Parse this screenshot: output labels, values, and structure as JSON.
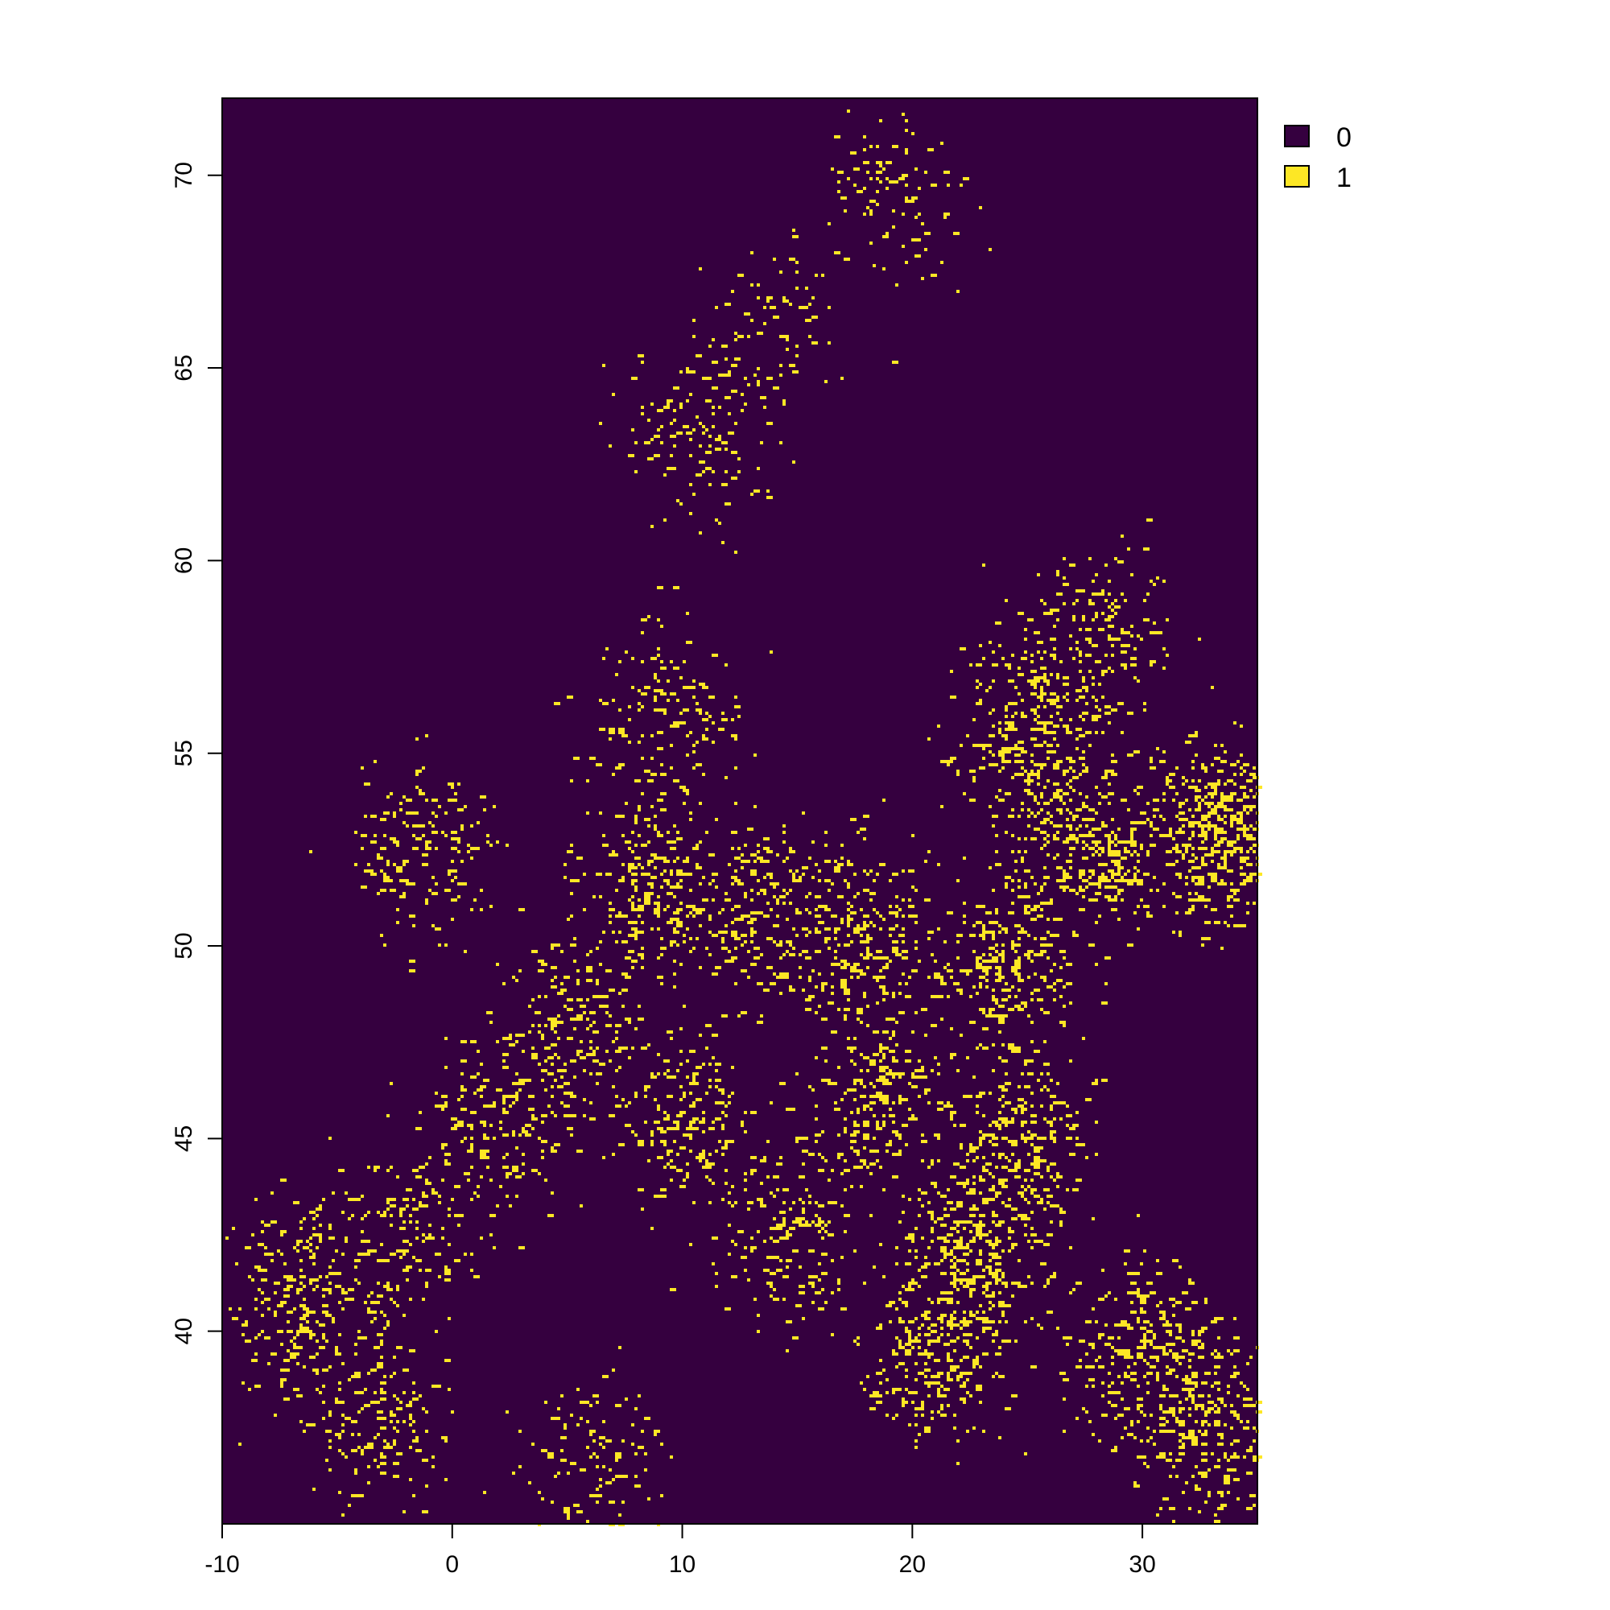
{
  "chart_data": {
    "type": "heatmap",
    "title": "",
    "xlabel": "",
    "ylabel": "",
    "xlim": [
      -10,
      35
    ],
    "ylim": [
      35,
      72
    ],
    "x_ticks": [
      -10,
      0,
      10,
      20,
      30
    ],
    "y_ticks": [
      40,
      45,
      50,
      55,
      60,
      65,
      70
    ],
    "x_tick_labels": [
      "-10",
      "0",
      "10",
      "20",
      "30"
    ],
    "y_tick_labels": [
      "40",
      "45",
      "50",
      "55",
      "60",
      "65",
      "70"
    ],
    "legend": {
      "placement": "right",
      "entries": [
        {
          "label": "0",
          "color": "#35003F"
        },
        {
          "label": "1",
          "color": "#FDE725"
        }
      ]
    },
    "background_value": 0,
    "positive_clusters": [
      {
        "lon": 27.5,
        "lat": 52.5,
        "density": 0.12
      },
      {
        "lon": 33.0,
        "lat": 53.0,
        "density": 0.18
      },
      {
        "lon": 25.0,
        "lat": 55.5,
        "density": 0.12
      },
      {
        "lon": 24.0,
        "lat": 49.5,
        "density": 0.1
      },
      {
        "lon": 18.0,
        "lat": 50.0,
        "density": 0.1
      },
      {
        "lon": 13.0,
        "lat": 51.0,
        "density": 0.09
      },
      {
        "lon": 8.5,
        "lat": 51.5,
        "density": 0.09
      },
      {
        "lon": 5.0,
        "lat": 48.0,
        "density": 0.07
      },
      {
        "lon": 2.0,
        "lat": 45.5,
        "density": 0.07
      },
      {
        "lon": 10.0,
        "lat": 45.5,
        "density": 0.08
      },
      {
        "lon": 18.5,
        "lat": 46.0,
        "density": 0.09
      },
      {
        "lon": 24.5,
        "lat": 45.0,
        "density": 0.11
      },
      {
        "lon": 22.5,
        "lat": 42.0,
        "density": 0.12
      },
      {
        "lon": 21.0,
        "lat": 39.5,
        "density": 0.1
      },
      {
        "lon": 30.0,
        "lat": 39.5,
        "density": 0.1
      },
      {
        "lon": 32.5,
        "lat": 37.5,
        "density": 0.1
      },
      {
        "lon": -7.0,
        "lat": 41.0,
        "density": 0.09
      },
      {
        "lon": -3.5,
        "lat": 38.0,
        "density": 0.07
      },
      {
        "lon": -2.5,
        "lat": 42.5,
        "density": 0.06
      },
      {
        "lon": -1.5,
        "lat": 52.5,
        "density": 0.07
      },
      {
        "lon": 14.5,
        "lat": 42.5,
        "density": 0.07
      },
      {
        "lon": 9.0,
        "lat": 56.0,
        "density": 0.06
      },
      {
        "lon": 10.5,
        "lat": 63.5,
        "density": 0.05
      },
      {
        "lon": 14.0,
        "lat": 66.0,
        "density": 0.03
      },
      {
        "lon": 19.0,
        "lat": 69.5,
        "density": 0.04
      },
      {
        "lon": 28.0,
        "lat": 58.0,
        "density": 0.07
      },
      {
        "lon": 6.0,
        "lat": 36.5,
        "density": 0.05
      }
    ]
  }
}
